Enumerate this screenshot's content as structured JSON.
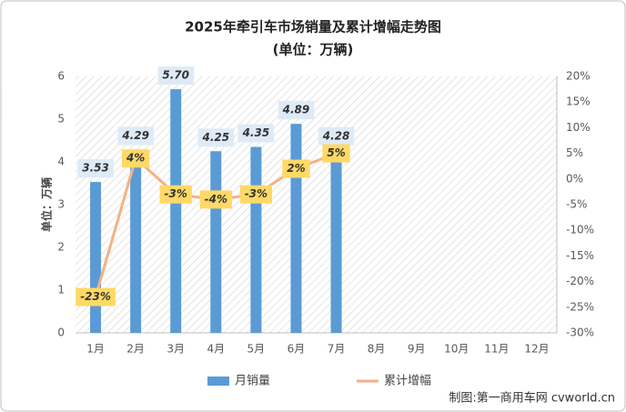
{
  "chart_data": {
    "type": "bar-line",
    "title": "2025年牵引车市场销量及累计增幅走势图",
    "subtitle": "(单位：万辆)",
    "y_label": "单位：万辆",
    "categories": [
      "1月",
      "2月",
      "3月",
      "4月",
      "5月",
      "6月",
      "7月",
      "8月",
      "9月",
      "10月",
      "11月",
      "12月"
    ],
    "series": [
      {
        "name": "月销量",
        "type": "bar",
        "color": "#5b9bd5",
        "values": [
          3.53,
          4.29,
          5.7,
          4.25,
          4.35,
          4.89,
          4.28,
          null,
          null,
          null,
          null,
          null
        ],
        "value_labels": [
          "3.53",
          "4.29",
          "5.70",
          "4.25",
          "4.35",
          "4.89",
          "4.28",
          null,
          null,
          null,
          null,
          null
        ]
      },
      {
        "name": "累计增幅",
        "type": "line",
        "axis": "y2",
        "color": "#f4b183",
        "values": [
          -23,
          4,
          -3,
          -4,
          -3,
          2,
          5,
          null,
          null,
          null,
          null,
          null
        ],
        "value_labels": [
          "-23%",
          "4%",
          "-3%",
          "-4%",
          "-3%",
          "2%",
          "5%",
          null,
          null,
          null,
          null,
          null
        ]
      }
    ],
    "ylim": [
      0,
      6
    ],
    "yticks": [
      0,
      1,
      2,
      3,
      4,
      5,
      6
    ],
    "y2lim": [
      -30,
      20
    ],
    "y2ticks": [
      {
        "value": 20,
        "label": "20%"
      },
      {
        "value": 15,
        "label": "15%"
      },
      {
        "value": 10,
        "label": "10%"
      },
      {
        "value": 5,
        "label": "5%"
      },
      {
        "value": 0,
        "label": "0%"
      },
      {
        "value": -5,
        "label": "-5%"
      },
      {
        "value": -10,
        "label": "-10%"
      },
      {
        "value": -15,
        "label": "-15%"
      },
      {
        "value": -20,
        "label": "-20%"
      },
      {
        "value": -25,
        "label": "-25%"
      },
      {
        "value": -30,
        "label": "-30%"
      }
    ],
    "source": "制图:第一商用车网 cvworld.cn"
  }
}
